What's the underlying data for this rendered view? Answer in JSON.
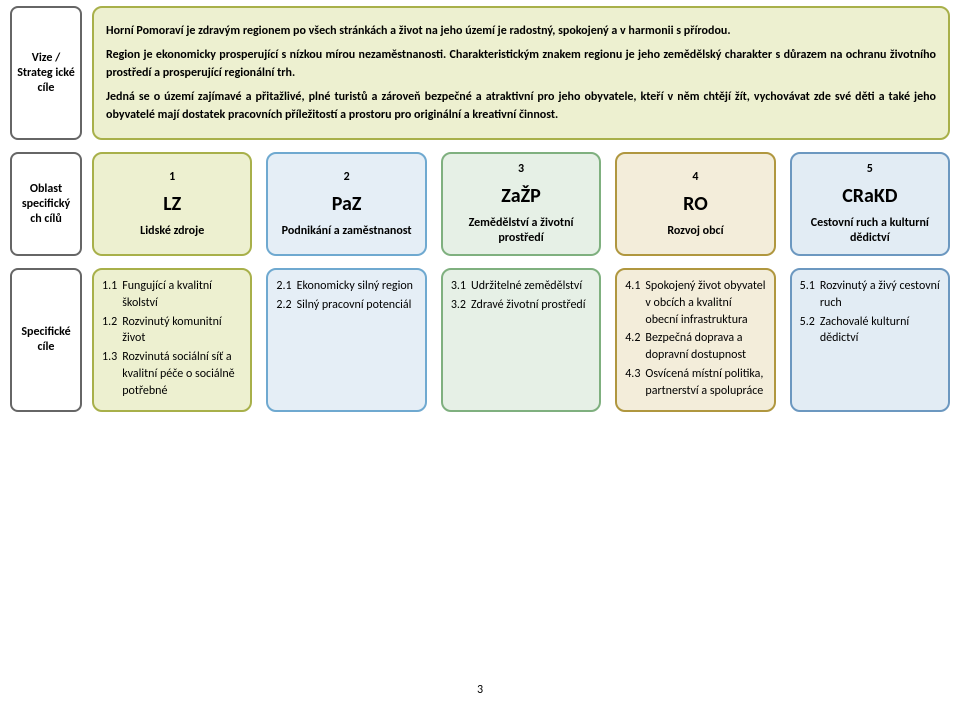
{
  "colors": {
    "col1_border": "#a8b04a",
    "col1_bg": "#edf0d0",
    "col2_border": "#6fa9d0",
    "col2_bg": "#e5eef6",
    "col3_border": "#7fb07f",
    "col3_bg": "#e6f0e6",
    "col4_border": "#b0973f",
    "col4_bg": "#f3edda",
    "col5_border": "#6c98c0",
    "col5_bg": "#e2ecf4",
    "side_border": "#666666",
    "side_bg": "#ffffff"
  },
  "labels": {
    "row1": "Vize / Strateg ické cíle",
    "row2": "Oblast specifický ch cílů",
    "row3": "Specifické cíle"
  },
  "vision": {
    "p1": "Horní Pomoraví je zdravým regionem po všech stránkách a život na jeho území je radostný, spokojený a v harmonii s přírodou.",
    "p2": "Region je ekonomicky prosperující s nízkou mírou nezaměstnanosti. Charakteristickým znakem regionu je jeho zemědělský charakter s důrazem na ochranu životního prostředí a prosperující regionální trh.",
    "p3": "Jedná se o území zajímavé a přitažlivé, plné turistů a zároveň bezpečné a atraktivní pro jeho obyvatele, kteří v něm chtějí žít, vychovávat zde své děti a také jeho obyvatelé mají dostatek pracovních příležitostí a prostoru pro originální a kreativní činnost."
  },
  "areas": [
    {
      "num": "1",
      "abbr": "LZ",
      "name": "Lidské zdroje"
    },
    {
      "num": "2",
      "abbr": "PaZ",
      "name": "Podnikání a zaměstnanost"
    },
    {
      "num": "3",
      "abbr": "ZaŽP",
      "name": "Zemědělství a životní prostředí"
    },
    {
      "num": "4",
      "abbr": "RO",
      "name": "Rozvoj obcí"
    },
    {
      "num": "5",
      "abbr": "CRaKD",
      "name": "Cestovní ruch a kulturní dědictví"
    }
  ],
  "specs": [
    [
      {
        "num": "1.1",
        "txt": "Fungující a kvalitní školství"
      },
      {
        "num": "1.2",
        "txt": "Rozvinutý komunitní život"
      },
      {
        "num": "1.3",
        "txt": "Rozvinutá sociální síť a kvalitní péče o sociálně potřebné"
      }
    ],
    [
      {
        "num": "2.1",
        "txt": "Ekonomicky silný region"
      },
      {
        "num": "2.2",
        "txt": "Silný pracovní potenciál"
      }
    ],
    [
      {
        "num": "3.1",
        "txt": "Udržitelné zemědělství"
      },
      {
        "num": "3.2",
        "txt": "Zdravé životní prostředí"
      }
    ],
    [
      {
        "num": "4.1",
        "txt": "Spokojený život obyvatel v obcích a kvalitní obecní infrastruktura"
      },
      {
        "num": "4.2",
        "txt": "Bezpečná doprava a dopravní dostupnost"
      },
      {
        "num": "4.3",
        "txt": "Osvícená místní politika, partnerství a spolupráce"
      }
    ],
    [
      {
        "num": "5.1",
        "txt": "Rozvinutý a živý cestovní ruch"
      },
      {
        "num": "5.2",
        "txt": "Zachovalé kulturní dědictví"
      }
    ]
  ],
  "page_number": "3"
}
